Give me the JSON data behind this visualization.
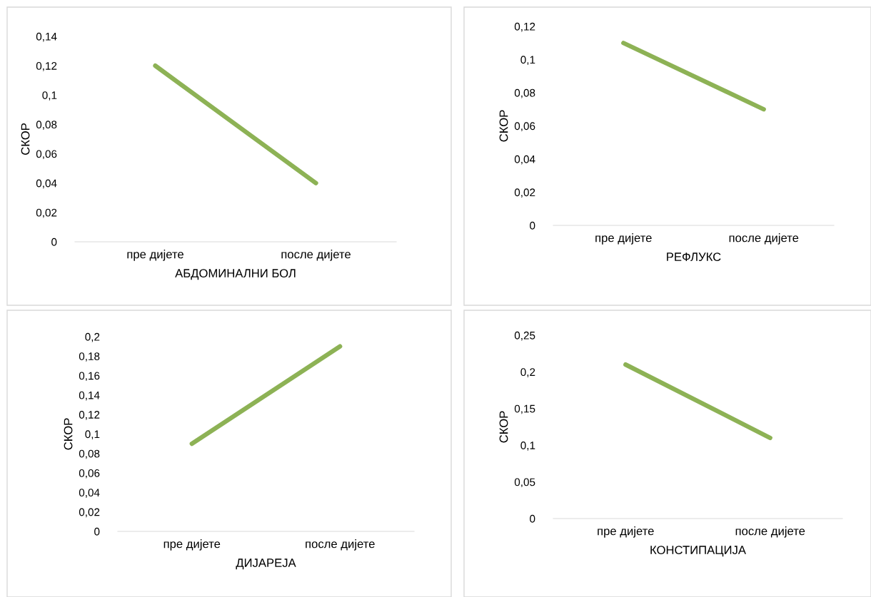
{
  "chart_data": [
    {
      "type": "line",
      "xlabel": "АБДОМИНАЛНИ БОЛ",
      "ylabel": "СКОР",
      "categories": [
        "пре дијете",
        "после дијете"
      ],
      "series": [
        {
          "color": "#8db255",
          "values": [
            0.12,
            0.04
          ]
        }
      ],
      "ylim": [
        0,
        0.14
      ],
      "yticks": [
        {
          "value": 0,
          "label": "0"
        },
        {
          "value": 0.02,
          "label": "0,02"
        },
        {
          "value": 0.04,
          "label": "0,04"
        },
        {
          "value": 0.06,
          "label": "0,06"
        },
        {
          "value": 0.08,
          "label": "0,08"
        },
        {
          "value": 0.1,
          "label": "0,1"
        },
        {
          "value": 0.12,
          "label": "0,12"
        },
        {
          "value": 0.14,
          "label": "0,14"
        }
      ],
      "grid": false,
      "marker": "none",
      "line_style": "solid"
    },
    {
      "type": "line",
      "xlabel": "РЕФЛУКС",
      "ylabel": "СКОР",
      "categories": [
        "пре дијете",
        "после дијете"
      ],
      "series": [
        {
          "color": "#8db255",
          "values": [
            0.11,
            0.07
          ]
        }
      ],
      "ylim": [
        0,
        0.12
      ],
      "yticks": [
        {
          "value": 0,
          "label": "0"
        },
        {
          "value": 0.02,
          "label": "0,02"
        },
        {
          "value": 0.04,
          "label": "0,04"
        },
        {
          "value": 0.06,
          "label": "0,06"
        },
        {
          "value": 0.08,
          "label": "0,08"
        },
        {
          "value": 0.1,
          "label": "0,1"
        },
        {
          "value": 0.12,
          "label": "0,12"
        }
      ],
      "grid": false,
      "marker": "none",
      "line_style": "solid"
    },
    {
      "type": "line",
      "xlabel": "ДИЈАРЕЈА",
      "ylabel": "СКОР",
      "categories": [
        "пре дијете",
        "после дијете"
      ],
      "series": [
        {
          "color": "#8db255",
          "values": [
            0.09,
            0.19
          ]
        }
      ],
      "ylim": [
        0,
        0.2
      ],
      "yticks": [
        {
          "value": 0,
          "label": "0"
        },
        {
          "value": 0.02,
          "label": "0,02"
        },
        {
          "value": 0.04,
          "label": "0,04"
        },
        {
          "value": 0.06,
          "label": "0,06"
        },
        {
          "value": 0.08,
          "label": "0,08"
        },
        {
          "value": 0.1,
          "label": "0,1"
        },
        {
          "value": 0.12,
          "label": "0,12"
        },
        {
          "value": 0.14,
          "label": "0,14"
        },
        {
          "value": 0.16,
          "label": "0,16"
        },
        {
          "value": 0.18,
          "label": "0,18"
        },
        {
          "value": 0.2,
          "label": "0,2"
        }
      ],
      "grid": false,
      "marker": "none",
      "line_style": "solid"
    },
    {
      "type": "line",
      "xlabel": "КОНСТИПАЦИЈА",
      "ylabel": "СКОР",
      "categories": [
        "пре дијете",
        "после дијете"
      ],
      "series": [
        {
          "color": "#8db255",
          "values": [
            0.21,
            0.11
          ]
        }
      ],
      "ylim": [
        0,
        0.25
      ],
      "yticks": [
        {
          "value": 0,
          "label": "0"
        },
        {
          "value": 0.05,
          "label": "0,05"
        },
        {
          "value": 0.1,
          "label": "0,1"
        },
        {
          "value": 0.15,
          "label": "0,15"
        },
        {
          "value": 0.2,
          "label": "0,2"
        },
        {
          "value": 0.25,
          "label": "0,25"
        }
      ],
      "grid": false,
      "marker": "none",
      "line_style": "solid"
    }
  ]
}
